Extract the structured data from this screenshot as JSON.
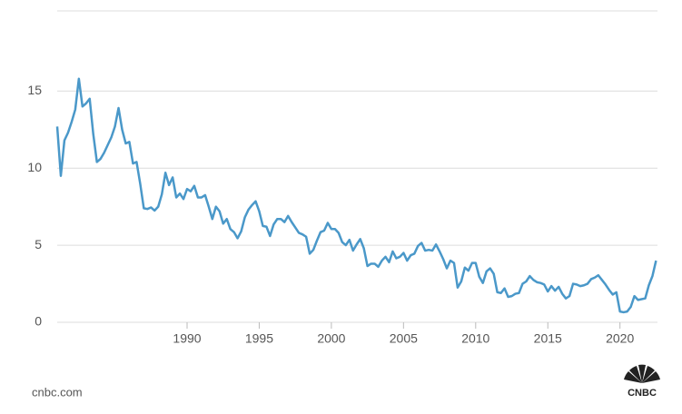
{
  "chart_data": {
    "type": "line",
    "x": [
      1981,
      1981.25,
      1981.5,
      1981.75,
      1982,
      1982.25,
      1982.5,
      1982.75,
      1983,
      1983.25,
      1983.5,
      1983.75,
      1984,
      1984.25,
      1984.5,
      1984.75,
      1985,
      1985.25,
      1985.5,
      1985.75,
      1986,
      1986.25,
      1986.5,
      1986.75,
      1987,
      1987.25,
      1987.5,
      1987.75,
      1988,
      1988.25,
      1988.5,
      1988.75,
      1989,
      1989.25,
      1989.5,
      1989.75,
      1990,
      1990.25,
      1990.5,
      1990.75,
      1991,
      1991.25,
      1991.5,
      1991.75,
      1992,
      1992.25,
      1992.5,
      1992.75,
      1993,
      1993.25,
      1993.5,
      1993.75,
      1994,
      1994.25,
      1994.5,
      1994.75,
      1995,
      1995.25,
      1995.5,
      1995.75,
      1996,
      1996.25,
      1996.5,
      1996.75,
      1997,
      1997.25,
      1997.5,
      1997.75,
      1998,
      1998.25,
      1998.5,
      1998.75,
      1999,
      1999.25,
      1999.5,
      1999.75,
      2000,
      2000.25,
      2000.5,
      2000.75,
      2001,
      2001.25,
      2001.5,
      2001.75,
      2002,
      2002.25,
      2002.5,
      2002.75,
      2003,
      2003.25,
      2003.5,
      2003.75,
      2004,
      2004.25,
      2004.5,
      2004.75,
      2005,
      2005.25,
      2005.5,
      2005.75,
      2006,
      2006.25,
      2006.5,
      2006.75,
      2007,
      2007.25,
      2007.5,
      2007.75,
      2008,
      2008.25,
      2008.5,
      2008.75,
      2009,
      2009.25,
      2009.5,
      2009.75,
      2010,
      2010.25,
      2010.5,
      2010.75,
      2011,
      2011.25,
      2011.5,
      2011.75,
      2012,
      2012.25,
      2012.5,
      2012.75,
      2013,
      2013.25,
      2013.5,
      2013.75,
      2014,
      2014.25,
      2014.5,
      2014.75,
      2015,
      2015.25,
      2015.5,
      2015.75,
      2016,
      2016.25,
      2016.5,
      2016.75,
      2017,
      2017.25,
      2017.5,
      2017.75,
      2018,
      2018.25,
      2018.5,
      2018.75,
      2019,
      2019.25,
      2019.5,
      2019.75,
      2020,
      2020.25,
      2020.5,
      2020.75,
      2021,
      2021.25,
      2021.5,
      2021.75,
      2022,
      2022.25,
      2022.5
    ],
    "series": [
      {
        "color": "#4a98c9",
        "values": [
          12.7,
          9.5,
          11.8,
          12.3,
          13.0,
          13.8,
          15.8,
          14.0,
          14.2,
          14.5,
          12.2,
          10.4,
          10.6,
          11.0,
          11.5,
          12.0,
          12.7,
          13.9,
          12.5,
          11.6,
          11.7,
          10.3,
          10.4,
          9.0,
          7.4,
          7.35,
          7.45,
          7.25,
          7.5,
          8.3,
          9.7,
          8.9,
          9.4,
          8.1,
          8.35,
          8.0,
          8.65,
          8.5,
          8.85,
          8.1,
          8.1,
          8.25,
          7.5,
          6.7,
          7.5,
          7.2,
          6.4,
          6.7,
          6.05,
          5.85,
          5.45,
          5.9,
          6.8,
          7.3,
          7.6,
          7.85,
          7.2,
          6.25,
          6.2,
          5.6,
          6.35,
          6.7,
          6.7,
          6.5,
          6.9,
          6.5,
          6.15,
          5.8,
          5.7,
          5.55,
          4.45,
          4.7,
          5.3,
          5.85,
          5.95,
          6.45,
          6.05,
          6.05,
          5.8,
          5.2,
          5.0,
          5.35,
          4.65,
          5.05,
          5.4,
          4.8,
          3.65,
          3.8,
          3.8,
          3.6,
          4.0,
          4.25,
          3.9,
          4.6,
          4.15,
          4.25,
          4.5,
          4.0,
          4.35,
          4.45,
          4.95,
          5.15,
          4.65,
          4.7,
          4.65,
          5.05,
          4.6,
          4.1,
          3.5,
          4.0,
          3.85,
          2.25,
          2.65,
          3.55,
          3.35,
          3.85,
          3.85,
          2.95,
          2.55,
          3.3,
          3.5,
          3.15,
          1.95,
          1.9,
          2.2,
          1.65,
          1.7,
          1.85,
          1.9,
          2.5,
          2.65,
          3.0,
          2.75,
          2.6,
          2.55,
          2.45,
          2.0,
          2.35,
          2.05,
          2.3,
          1.85,
          1.55,
          1.7,
          2.5,
          2.45,
          2.35,
          2.4,
          2.5,
          2.8,
          2.9,
          3.05,
          2.75,
          2.45,
          2.1,
          1.8,
          1.95,
          0.7,
          0.65,
          0.7,
          1.0,
          1.7,
          1.45,
          1.5,
          1.55,
          2.4,
          3.0,
          4.0
        ]
      }
    ],
    "xlim": [
      1981,
      2022.6
    ],
    "xticks": [
      1990,
      1995,
      2000,
      2005,
      2010,
      2015,
      2020
    ],
    "ylim": [
      0,
      20.2
    ],
    "yticks": [
      0,
      5,
      10,
      15
    ],
    "grid": true,
    "source": "cnbc.com",
    "logo": "CNBC"
  }
}
